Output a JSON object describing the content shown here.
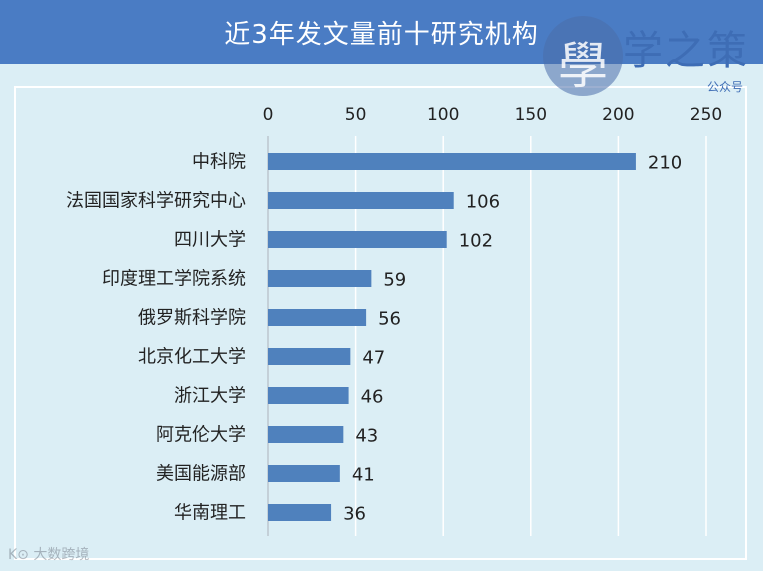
{
  "header": {
    "title": "近3年发文量前十研究机构"
  },
  "logo": {
    "char": "學",
    "name": "学之策",
    "subtitle": "公众号"
  },
  "watermark": "K⊙ 大数跨境",
  "colors": {
    "header": "#4a7cc4",
    "background": "#dbeef5",
    "bar": "#4f81bd",
    "grid": "#ffffff"
  },
  "chart_data": {
    "type": "bar",
    "orientation": "horizontal",
    "title": "近3年发文量前十研究机构",
    "categories": [
      "中科院",
      "法国国家科学研究中心",
      "四川大学",
      "印度理工学院系统",
      "俄罗斯科学院",
      "北京化工大学",
      "浙江大学",
      "阿克伦大学",
      "美国能源部",
      "华南理工"
    ],
    "values": [
      210,
      106,
      102,
      59,
      56,
      47,
      46,
      43,
      41,
      36
    ],
    "xlim": [
      0,
      250
    ],
    "xticks": [
      0,
      50,
      100,
      150,
      200,
      250
    ],
    "axis_position": "top",
    "grid": true,
    "data_labels": true
  }
}
